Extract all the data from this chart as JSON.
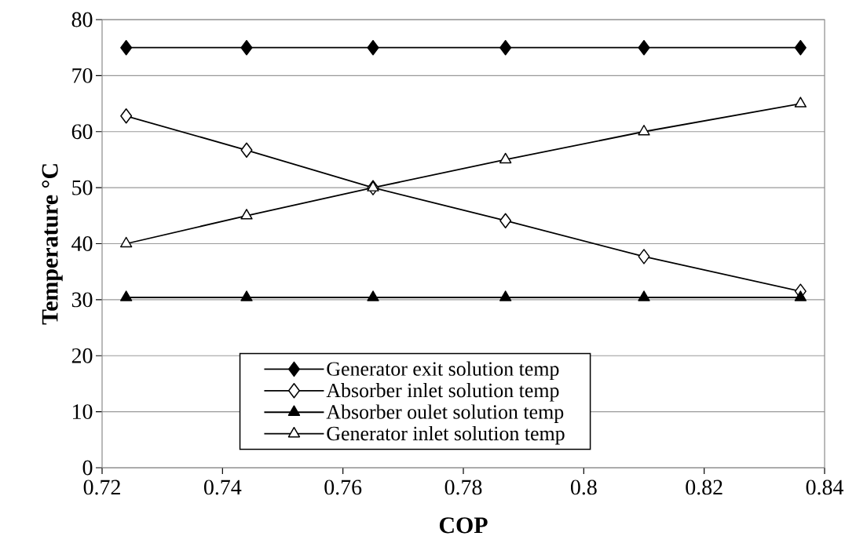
{
  "chart_data": {
    "type": "line",
    "xlabel": "COP",
    "ylabel": "Temperature °C",
    "x": [
      0.724,
      0.744,
      0.765,
      0.787,
      0.81,
      0.836
    ],
    "series": [
      {
        "name": "Generator exit solution temp",
        "color": "#000000",
        "marker": "diamond",
        "values": [
          75,
          75,
          75,
          75,
          75,
          75
        ]
      },
      {
        "name": "Absorber inlet solution temp",
        "color": "#000000",
        "marker": "diamond",
        "values": [
          62.8,
          56.7,
          50,
          44.1,
          37.7,
          31.5
        ]
      },
      {
        "name": "Absorber oulet solution temp",
        "color": "#000000",
        "marker": "triangle",
        "values": [
          30.4,
          30.4,
          30.4,
          30.4,
          30.4,
          30.4
        ]
      },
      {
        "name": "Generator inlet solution temp",
        "color": "#000000",
        "marker": "triangle",
        "values": [
          40,
          45,
          50,
          55,
          60,
          65
        ]
      }
    ],
    "xlim": [
      0.72,
      0.84
    ],
    "xticks": [
      0.72,
      0.74,
      0.76,
      0.78,
      0.8,
      0.82,
      0.84
    ],
    "ylim": [
      0,
      80
    ],
    "yticks": [
      0,
      10,
      20,
      30,
      40,
      50,
      60,
      70,
      80
    ],
    "grid": "y",
    "legend": "bottom",
    "line_style": "solid"
  }
}
